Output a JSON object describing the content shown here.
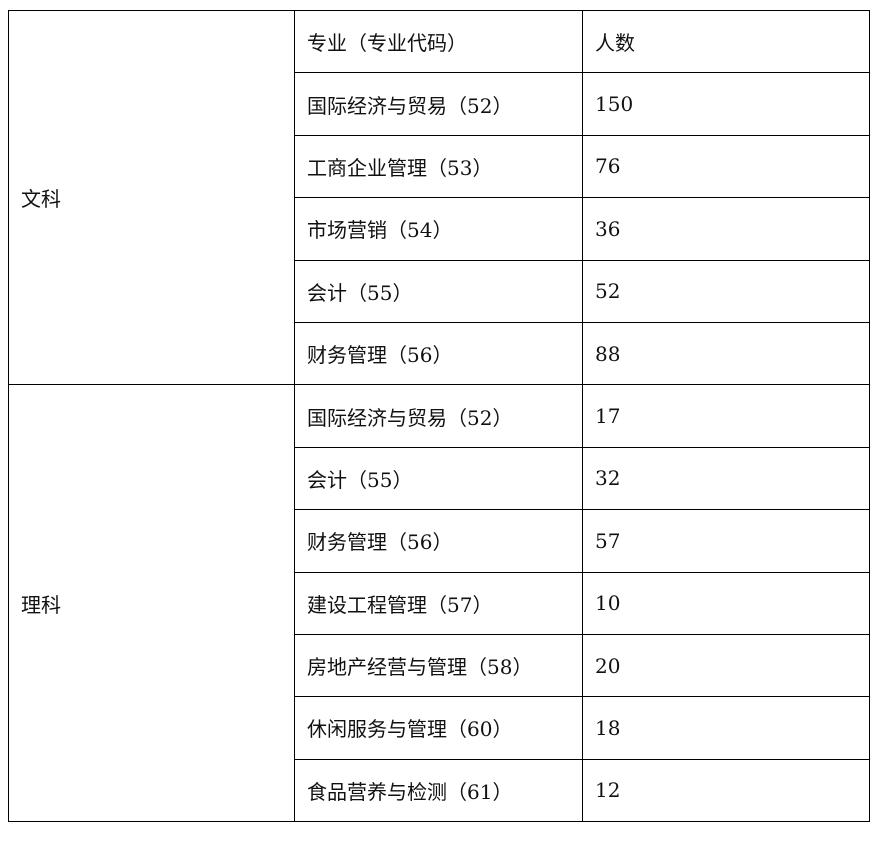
{
  "header": {
    "major": "专业（专业代码）",
    "count": "人数"
  },
  "groups": [
    {
      "label": "文科",
      "rows": [
        {
          "major": "国际经济与贸易（52）",
          "count": "150"
        },
        {
          "major": "工商企业管理（53）",
          "count": "76"
        },
        {
          "major": "市场营销（54）",
          "count": "36"
        },
        {
          "major": "会计（55）",
          "count": "52"
        },
        {
          "major": "财务管理（56）",
          "count": "88"
        }
      ]
    },
    {
      "label": "理科",
      "rows": [
        {
          "major": "国际经济与贸易（52）",
          "count": "17"
        },
        {
          "major": "会计（55）",
          "count": "32"
        },
        {
          "major": "财务管理（56）",
          "count": "57"
        },
        {
          "major": "建设工程管理（57）",
          "count": "10"
        },
        {
          "major": "房地产经营与管理（58）",
          "count": "20"
        },
        {
          "major": "休闲服务与管理（60）",
          "count": "18"
        },
        {
          "major": "食品营养与检测（61）",
          "count": "12"
        }
      ]
    }
  ]
}
